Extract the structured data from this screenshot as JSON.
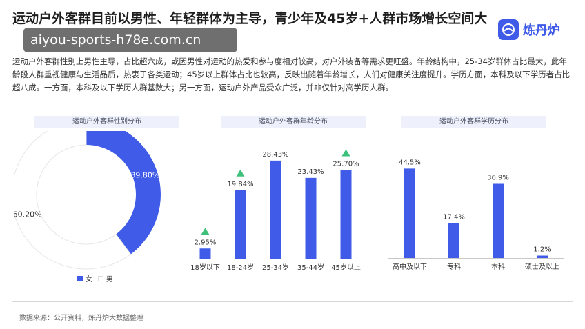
{
  "title": "运动户外客群目前以男性、年轻群体为主导，青少年及45岁+人群市场增长空间大",
  "watermark": "aiyou-sports-h78e.com.cn",
  "brand": {
    "name": "炼丹炉",
    "logo_icon": "data-logo-icon",
    "color": "#3f5be8"
  },
  "description": "运动户外客群性别上男性主导，占比超六成，或因男性对运动的热爱和参与度相对较高，对户外装备等需求更旺盛。年龄结构中，25-34岁群体占比最大，此年龄段人群重视健康与生活品质，热衷于各类运动；45岁以上群体占比也较高，反映出随着年龄增长，人们对健康关注度提升。学历方面，本科及以下学历者占比超八成。一方面，本科及以下学历人群基数大；另一方面，运动户外产品受众广泛，并非仅针对高学历人群。",
  "footer": {
    "source": "数据来源：公开资料，炼丹炉大数据整理"
  },
  "colors": {
    "primary": "#3f5be8",
    "secondary": "#ffffff",
    "up_marker": "#3ec07a"
  },
  "chart_data": [
    {
      "type": "pie",
      "title": "运动户外客群性别分布",
      "categories": [
        "女",
        "男"
      ],
      "values": [
        39.8,
        60.2
      ],
      "labels": [
        "39.80%",
        "60.20%"
      ],
      "donut": true,
      "legend": "bottom"
    },
    {
      "type": "bar",
      "title": "运动户外客群年龄分布",
      "categories": [
        "18岁以下",
        "18-24岁",
        "25-34岁",
        "35-44岁",
        "45岁以上"
      ],
      "values": [
        2.95,
        19.84,
        28.43,
        23.43,
        25.7
      ],
      "labels": [
        "2.95%",
        "19.84%",
        "28.43%",
        "23.43%",
        "25.70%"
      ],
      "highlighted": [
        true,
        true,
        false,
        false,
        true
      ],
      "ylim": [
        0,
        30
      ]
    },
    {
      "type": "bar",
      "title": "运动户外客群学历分布",
      "categories": [
        "高中及以下",
        "专科",
        "本科",
        "硕士及以上"
      ],
      "values": [
        44.5,
        17.4,
        36.9,
        1.2
      ],
      "labels": [
        "44.5%",
        "17.4%",
        "36.9%",
        "1.2%"
      ],
      "ylim": [
        0,
        46
      ]
    }
  ]
}
